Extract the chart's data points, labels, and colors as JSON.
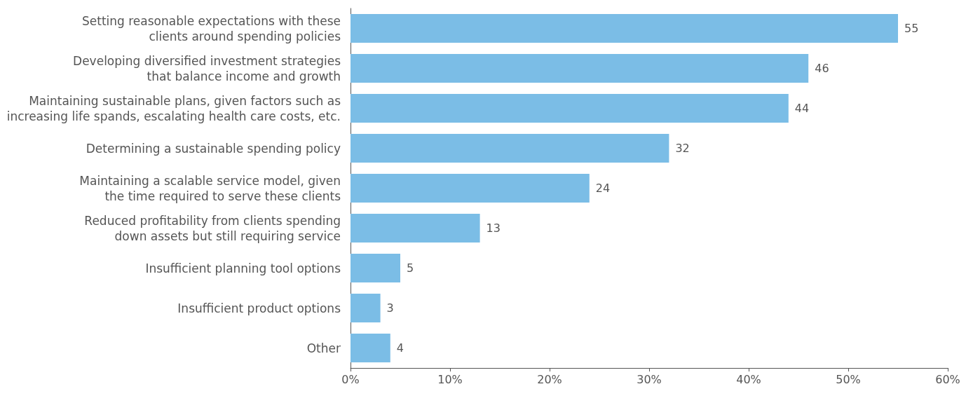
{
  "chart_data": {
    "type": "bar",
    "orientation": "horizontal",
    "categories": [
      "Setting reasonable expectations with these\nclients around spending policies",
      "Developing diversified investment strategies\nthat balance income and growth",
      "Maintaining sustainable plans, given factors such as\nincreasing life spands, escalating health care costs, etc.",
      "Determining a sustainable spending policy",
      "Maintaining a scalable service model, given\nthe time required to serve these clients",
      "Reduced profitability from clients spending\ndown assets but still requiring service",
      "Insufficient planning tool options",
      "Insufficient product options",
      "Other"
    ],
    "values": [
      55,
      46,
      44,
      32,
      24,
      13,
      5,
      3,
      4
    ],
    "color": "#7bbde6",
    "data_labels": true,
    "xlim": [
      0,
      60
    ],
    "xticks": [
      {
        "value": 0,
        "label": "0%"
      },
      {
        "value": 10,
        "label": "10%"
      },
      {
        "value": 20,
        "label": "20%"
      },
      {
        "value": 30,
        "label": "30%"
      },
      {
        "value": 40,
        "label": "40%"
      },
      {
        "value": 50,
        "label": "50%"
      },
      {
        "value": 60,
        "label": "60%"
      }
    ],
    "grid": false
  }
}
